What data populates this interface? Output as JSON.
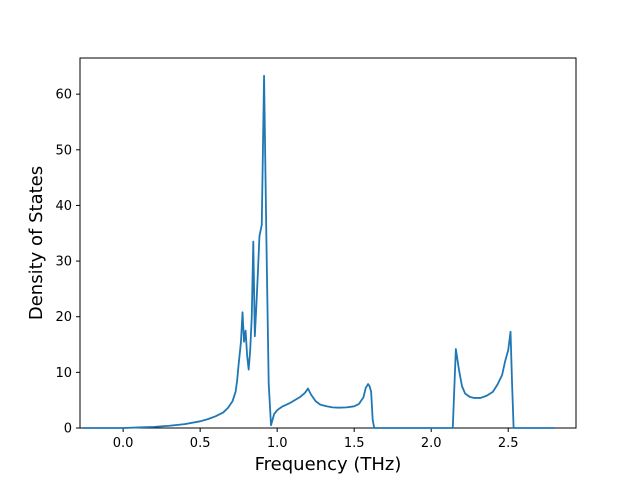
{
  "chart_data": {
    "type": "line",
    "title": "",
    "xlabel": "Frequency (THz)",
    "ylabel": "Density of States",
    "xlim": [
      -0.28,
      2.94
    ],
    "ylim": [
      0,
      66.5
    ],
    "xticks": [
      0.0,
      0.5,
      1.0,
      1.5,
      2.0,
      2.5
    ],
    "xtick_labels": [
      "0.0",
      "0.5",
      "1.0",
      "1.5",
      "2.0",
      "2.5"
    ],
    "yticks": [
      0,
      10,
      20,
      30,
      40,
      50,
      60
    ],
    "ytick_labels": [
      "0",
      "10",
      "20",
      "30",
      "40",
      "50",
      "60"
    ],
    "grid": false,
    "legend": "none",
    "series": [
      {
        "color": "#1f77b4",
        "points": [
          [
            -0.26,
            0
          ],
          [
            0.0,
            0
          ],
          [
            0.1,
            0.1
          ],
          [
            0.2,
            0.2
          ],
          [
            0.3,
            0.4
          ],
          [
            0.4,
            0.7
          ],
          [
            0.5,
            1.2
          ],
          [
            0.55,
            1.6
          ],
          [
            0.6,
            2.1
          ],
          [
            0.65,
            2.8
          ],
          [
            0.68,
            3.6
          ],
          [
            0.71,
            4.8
          ],
          [
            0.73,
            6.5
          ],
          [
            0.74,
            8.5
          ],
          [
            0.75,
            11.5
          ],
          [
            0.765,
            15.5
          ],
          [
            0.775,
            20.8
          ],
          [
            0.785,
            15.5
          ],
          [
            0.795,
            17.5
          ],
          [
            0.805,
            13
          ],
          [
            0.815,
            10.5
          ],
          [
            0.825,
            14
          ],
          [
            0.835,
            20
          ],
          [
            0.845,
            33.5
          ],
          [
            0.855,
            16.5
          ],
          [
            0.865,
            22
          ],
          [
            0.875,
            28
          ],
          [
            0.885,
            34.5
          ],
          [
            0.9,
            36.5
          ],
          [
            0.915,
            63.3
          ],
          [
            0.93,
            34
          ],
          [
            0.945,
            8
          ],
          [
            0.96,
            0.5
          ],
          [
            0.98,
            2.5
          ],
          [
            1.0,
            3.2
          ],
          [
            1.03,
            3.8
          ],
          [
            1.06,
            4.2
          ],
          [
            1.09,
            4.6
          ],
          [
            1.12,
            5.1
          ],
          [
            1.15,
            5.6
          ],
          [
            1.18,
            6.3
          ],
          [
            1.2,
            7.1
          ],
          [
            1.22,
            6.0
          ],
          [
            1.25,
            4.8
          ],
          [
            1.28,
            4.2
          ],
          [
            1.32,
            3.9
          ],
          [
            1.36,
            3.7
          ],
          [
            1.4,
            3.65
          ],
          [
            1.45,
            3.7
          ],
          [
            1.5,
            3.9
          ],
          [
            1.53,
            4.3
          ],
          [
            1.56,
            5.5
          ],
          [
            1.575,
            7.2
          ],
          [
            1.59,
            7.9
          ],
          [
            1.6,
            7.5
          ],
          [
            1.61,
            6.5
          ],
          [
            1.62,
            1.5
          ],
          [
            1.63,
            0
          ],
          [
            1.7,
            0
          ],
          [
            1.9,
            0
          ],
          [
            2.14,
            0
          ],
          [
            2.16,
            14.2
          ],
          [
            2.18,
            10.5
          ],
          [
            2.2,
            7.5
          ],
          [
            2.22,
            6.2
          ],
          [
            2.25,
            5.6
          ],
          [
            2.28,
            5.4
          ],
          [
            2.32,
            5.4
          ],
          [
            2.36,
            5.8
          ],
          [
            2.4,
            6.5
          ],
          [
            2.43,
            7.8
          ],
          [
            2.46,
            9.5
          ],
          [
            2.48,
            12.0
          ],
          [
            2.5,
            14.0
          ],
          [
            2.515,
            17.3
          ],
          [
            2.525,
            8.0
          ],
          [
            2.535,
            0
          ],
          [
            2.6,
            0
          ],
          [
            2.8,
            0
          ]
        ]
      }
    ]
  }
}
